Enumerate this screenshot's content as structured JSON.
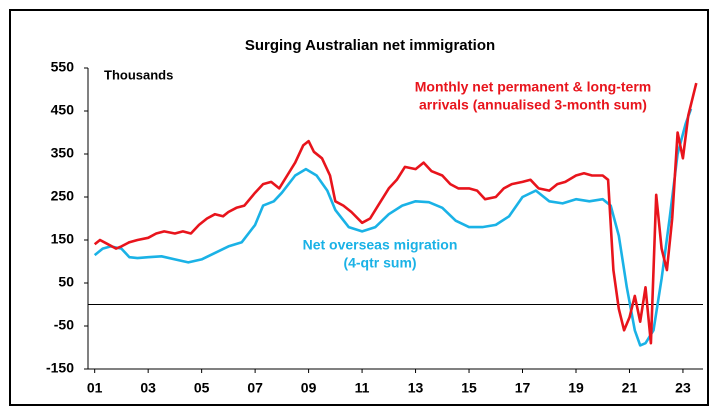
{
  "chart_data": {
    "type": "line",
    "title": "Surging Australian net immigration",
    "y_label": "Thousands",
    "xlim": [
      2000.75,
      2023.75
    ],
    "xticks": [
      {
        "value": 2001,
        "label": "01"
      },
      {
        "value": 2003,
        "label": "03"
      },
      {
        "value": 2005,
        "label": "05"
      },
      {
        "value": 2007,
        "label": "07"
      },
      {
        "value": 2009,
        "label": "09"
      },
      {
        "value": 2011,
        "label": "11"
      },
      {
        "value": 2013,
        "label": "13"
      },
      {
        "value": 2015,
        "label": "15"
      },
      {
        "value": 2017,
        "label": "17"
      },
      {
        "value": 2019,
        "label": "19"
      },
      {
        "value": 2021,
        "label": "21"
      },
      {
        "value": 2023,
        "label": "23"
      }
    ],
    "ylim": [
      -150,
      550
    ],
    "yticks": [
      550,
      450,
      350,
      250,
      150,
      50,
      -50,
      -150
    ],
    "grid": false,
    "series": [
      {
        "name": [
          "Monthly net permanent & long-term",
          "arrivals (annualised 3-month sum)"
        ],
        "color": "#e8141c",
        "x": [
          2001.0,
          2001.2,
          2001.5,
          2001.8,
          2002.0,
          2002.3,
          2002.6,
          2003.0,
          2003.3,
          2003.6,
          2004.0,
          2004.3,
          2004.6,
          2004.9,
          2005.2,
          2005.5,
          2005.8,
          2006.0,
          2006.3,
          2006.6,
          2007.0,
          2007.3,
          2007.6,
          2007.9,
          2008.2,
          2008.5,
          2008.8,
          2009.0,
          2009.2,
          2009.5,
          2009.8,
          2010.0,
          2010.3,
          2010.6,
          2011.0,
          2011.3,
          2011.6,
          2012.0,
          2012.3,
          2012.6,
          2013.0,
          2013.3,
          2013.6,
          2014.0,
          2014.3,
          2014.6,
          2015.0,
          2015.3,
          2015.6,
          2016.0,
          2016.3,
          2016.6,
          2017.0,
          2017.3,
          2017.6,
          2018.0,
          2018.3,
          2018.6,
          2019.0,
          2019.3,
          2019.6,
          2020.0,
          2020.2,
          2020.4,
          2020.6,
          2020.8,
          2021.0,
          2021.2,
          2021.4,
          2021.6,
          2021.8,
          2022.0,
          2022.2,
          2022.4,
          2022.6,
          2022.8,
          2023.0,
          2023.2,
          2023.5
        ],
        "values": [
          140,
          150,
          140,
          130,
          135,
          145,
          150,
          155,
          165,
          170,
          165,
          170,
          165,
          185,
          200,
          210,
          205,
          215,
          225,
          230,
          260,
          280,
          285,
          270,
          300,
          330,
          370,
          380,
          355,
          340,
          300,
          240,
          230,
          215,
          190,
          200,
          230,
          270,
          290,
          320,
          315,
          330,
          310,
          300,
          280,
          270,
          270,
          265,
          245,
          250,
          270,
          280,
          285,
          290,
          270,
          265,
          280,
          285,
          300,
          305,
          300,
          300,
          290,
          80,
          -10,
          -60,
          -30,
          20,
          -40,
          40,
          -90,
          255,
          130,
          80,
          200,
          400,
          340,
          440,
          515
        ]
      },
      {
        "name": [
          "Net overseas migration",
          "(4-qtr sum)"
        ],
        "color": "#1ab2e6",
        "x": [
          2001.0,
          2001.3,
          2001.6,
          2002.0,
          2002.3,
          2002.6,
          2003.0,
          2003.5,
          2004.0,
          2004.5,
          2005.0,
          2005.5,
          2006.0,
          2006.5,
          2007.0,
          2007.3,
          2007.7,
          2008.0,
          2008.5,
          2008.9,
          2009.3,
          2009.7,
          2010.0,
          2010.5,
          2011.0,
          2011.5,
          2012.0,
          2012.5,
          2013.0,
          2013.5,
          2014.0,
          2014.5,
          2015.0,
          2015.5,
          2016.0,
          2016.5,
          2017.0,
          2017.5,
          2018.0,
          2018.5,
          2019.0,
          2019.5,
          2020.0,
          2020.3,
          2020.6,
          2020.9,
          2021.2,
          2021.4,
          2021.6,
          2021.9,
          2022.2,
          2022.5,
          2022.8,
          2023.1,
          2023.3
        ],
        "values": [
          115,
          130,
          135,
          130,
          110,
          108,
          110,
          112,
          105,
          98,
          105,
          120,
          135,
          145,
          185,
          230,
          240,
          260,
          300,
          315,
          300,
          265,
          220,
          180,
          170,
          180,
          210,
          230,
          240,
          238,
          225,
          195,
          180,
          180,
          185,
          205,
          250,
          265,
          240,
          235,
          245,
          240,
          245,
          230,
          160,
          40,
          -60,
          -95,
          -90,
          -60,
          60,
          200,
          350,
          420,
          455
        ]
      }
    ]
  }
}
